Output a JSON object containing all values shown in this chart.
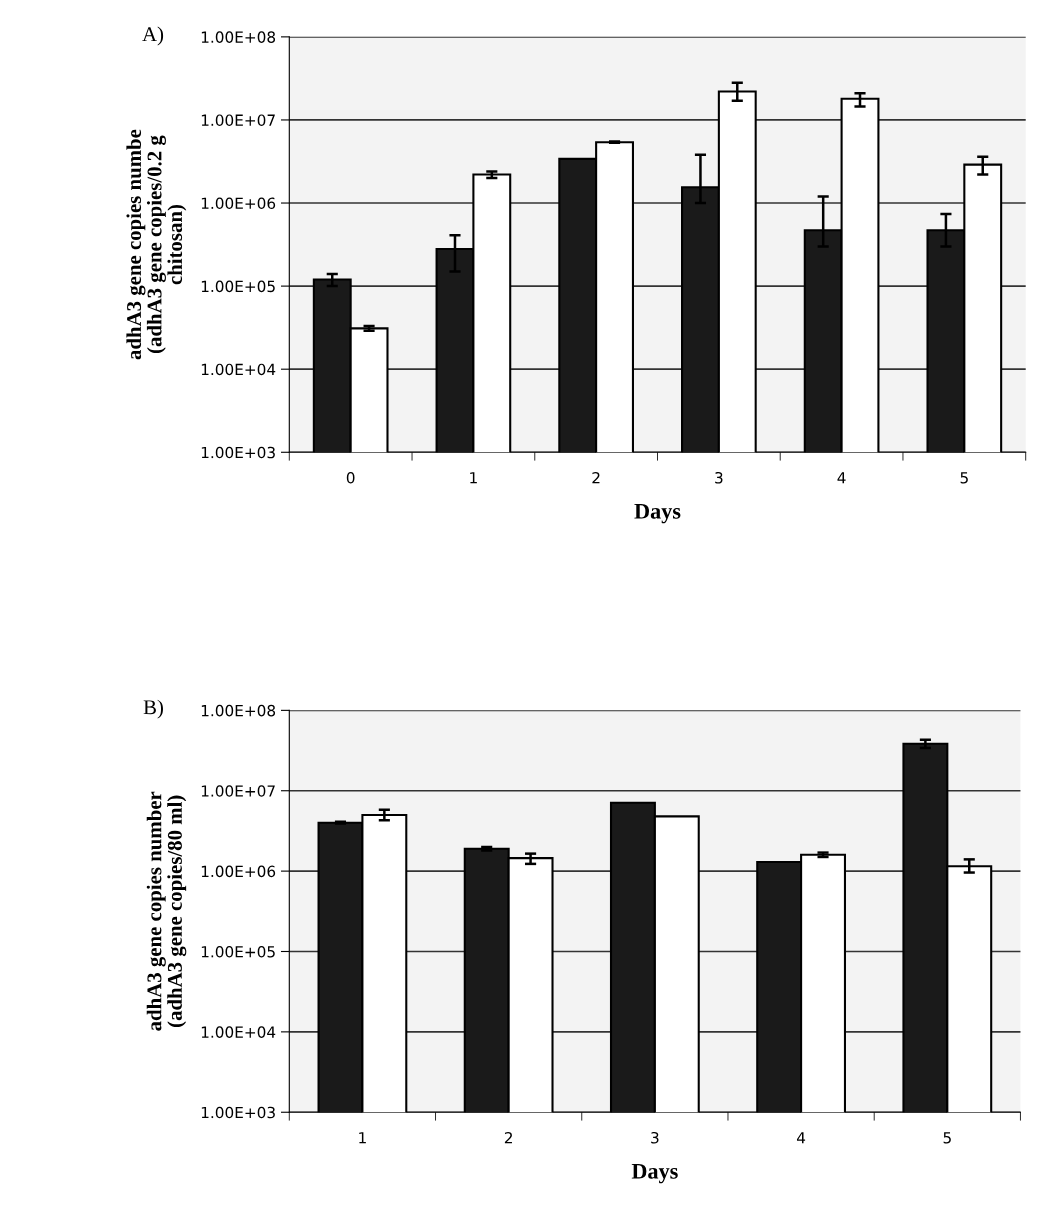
{
  "chart_data": [
    {
      "type": "bar",
      "title": "A)",
      "xlabel": "Days",
      "ylabel": "adhA3 gene copies numbe\n(adhA3 gene copies/0.2 g\nchitosan)",
      "categories": [
        "0",
        "1",
        "2",
        "3",
        "4",
        "5"
      ],
      "series": [
        {
          "color": "#1a1a1a",
          "values": [
            120000,
            280000,
            3400000,
            1550000,
            470000,
            470000
          ],
          "errors": [
            [
              100000,
              140000
            ],
            [
              150000,
              410000
            ],
            null,
            [
              1000000,
              3800000
            ],
            [
              300000,
              1200000
            ],
            [
              300000,
              740000
            ]
          ]
        },
        {
          "color": "#ffffff",
          "values": [
            31000,
            2200000,
            5400000,
            22000000,
            18000000,
            2900000
          ],
          "errors": [
            [
              29000,
              33000
            ],
            [
              2000000,
              2400000
            ],
            [
              5300000,
              5500000
            ],
            [
              17000000,
              28000000
            ],
            [
              14500000,
              21000000
            ],
            [
              2200000,
              3600000
            ]
          ]
        }
      ],
      "log": "y",
      "ylim": [
        1000,
        100000000
      ],
      "yticks": [
        {
          "value": 1000,
          "label": "1.00E+03"
        },
        {
          "value": 10000,
          "label": "1.00E+04"
        },
        {
          "value": 100000,
          "label": "1.00E+05"
        },
        {
          "value": 1000000,
          "label": "1.00E+06"
        },
        {
          "value": 10000000,
          "label": "1.00E+07"
        },
        {
          "value": 100000000,
          "label": "1.00E+08"
        }
      ],
      "grid": "y",
      "legend": false
    },
    {
      "type": "bar",
      "title": "B)",
      "xlabel": "Days",
      "ylabel": "adhA3 gene copies number\n(adhA3 gene copies/80 ml)",
      "categories": [
        "1",
        "2",
        "3",
        "4",
        "5"
      ],
      "series": [
        {
          "color": "#1a1a1a",
          "values": [
            4000000,
            1900000,
            7100000,
            1300000,
            38500000
          ],
          "errors": [
            [
              3900000,
              4100000
            ],
            [
              1800000,
              2000000
            ],
            null,
            null,
            [
              34000000,
              43000000
            ]
          ]
        },
        {
          "color": "#ffffff",
          "values": [
            5000000,
            1450000,
            4800000,
            1600000,
            1150000
          ],
          "errors": [
            [
              4300000,
              5800000
            ],
            [
              1230000,
              1650000
            ],
            null,
            [
              1500000,
              1700000
            ],
            [
              960000,
              1400000
            ]
          ]
        }
      ],
      "log": "y",
      "ylim": [
        1000,
        100000000
      ],
      "yticks": [
        {
          "value": 1000,
          "label": "1.00E+03"
        },
        {
          "value": 10000,
          "label": "1.00E+04"
        },
        {
          "value": 100000,
          "label": "1.00E+05"
        },
        {
          "value": 1000000,
          "label": "1.00E+06"
        },
        {
          "value": 10000000,
          "label": "1.00E+07"
        },
        {
          "value": 100000000,
          "label": "1.00E+08"
        }
      ],
      "grid": "y",
      "legend": false
    }
  ]
}
